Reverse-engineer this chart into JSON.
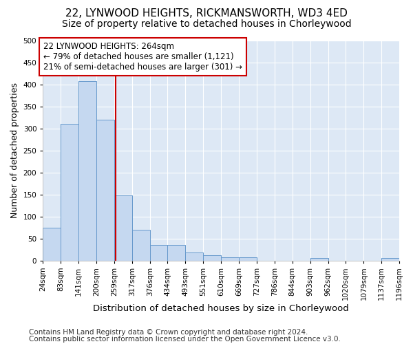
{
  "title1": "22, LYNWOOD HEIGHTS, RICKMANSWORTH, WD3 4ED",
  "title2": "Size of property relative to detached houses in Chorleywood",
  "xlabel": "Distribution of detached houses by size in Chorleywood",
  "ylabel": "Number of detached properties",
  "bin_edges": [
    24,
    83,
    141,
    200,
    259,
    317,
    376,
    434,
    493,
    551,
    610,
    669,
    727,
    786,
    844,
    903,
    962,
    1020,
    1079,
    1137,
    1196
  ],
  "bar_heights": [
    75,
    311,
    408,
    320,
    148,
    70,
    36,
    36,
    18,
    12,
    7,
    7,
    0,
    0,
    0,
    5,
    0,
    0,
    0,
    5
  ],
  "bar_color": "#c5d8f0",
  "bar_edge_color": "#6699cc",
  "vline_x": 264,
  "vline_color": "#cc0000",
  "annotation_text": "22 LYNWOOD HEIGHTS: 264sqm\n← 79% of detached houses are smaller (1,121)\n21% of semi-detached houses are larger (301) →",
  "annotation_box_color": "#ffffff",
  "annotation_box_edge_color": "#cc0000",
  "footer1": "Contains HM Land Registry data © Crown copyright and database right 2024.",
  "footer2": "Contains public sector information licensed under the Open Government Licence v3.0.",
  "title1_fontsize": 11,
  "title2_fontsize": 10,
  "xlabel_fontsize": 9.5,
  "ylabel_fontsize": 9,
  "tick_fontsize": 7.5,
  "annotation_fontsize": 8.5,
  "footer_fontsize": 7.5,
  "ylim": [
    0,
    500
  ],
  "yticks": [
    0,
    50,
    100,
    150,
    200,
    250,
    300,
    350,
    400,
    450,
    500
  ],
  "fig_bg_color": "#ffffff",
  "plot_bg_color": "#dde8f5"
}
